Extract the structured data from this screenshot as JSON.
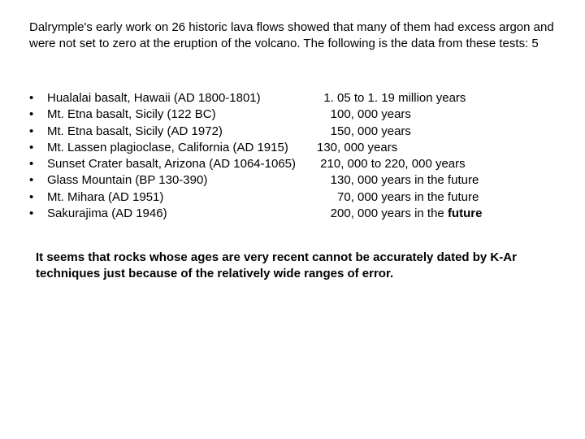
{
  "intro_text": "Dalrymple's early work on 26 historic lava flows showed that many of them had excess argon and were not set to zero at the eruption of the volcano.  The following is the data from these tests: 5",
  "bullet_char": "•",
  "items": [
    {
      "sample": "Hualalai basalt, Hawaii (AD 1800-1801)",
      "age": "  1. 05 to 1. 19 million years",
      "future_bold": false
    },
    {
      "sample": "Mt. Etna basalt, Sicily (122 BC)",
      "age": "    100, 000 years",
      "future_bold": false
    },
    {
      "sample": "Mt. Etna basalt, Sicily (AD 1972)",
      "age": "    150, 000 years",
      "future_bold": false
    },
    {
      "sample": "Mt. Lassen plagioclase, California (AD 1915)",
      "age": "130, 000 years",
      "future_bold": false
    },
    {
      "sample": "Sunset Crater basalt, Arizona (AD 1064-1065)",
      "age": " 210, 000 to 220, 000 years",
      "future_bold": false
    },
    {
      "sample": "Glass Mountain (BP 130-390)",
      "age": "    130, 000 years in the future",
      "future_bold": false
    },
    {
      "sample": "Mt. Mihara (AD 1951)",
      "age": "      70, 000 years in the future",
      "future_bold": false
    },
    {
      "sample": "Sakurajima (AD 1946)",
      "age": "    200, 000 years in the ",
      "future_bold": true,
      "future_word": "future"
    }
  ],
  "conclusion_text": "It seems that rocks whose ages are very recent cannot be accurately dated by K-Ar techniques just because of the relatively wide ranges of error.",
  "colors": {
    "background": "#ffffff",
    "text": "#000000"
  },
  "typography": {
    "font_family": "Arial",
    "body_fontsize_pt": 11,
    "conclusion_weight": "bold"
  }
}
